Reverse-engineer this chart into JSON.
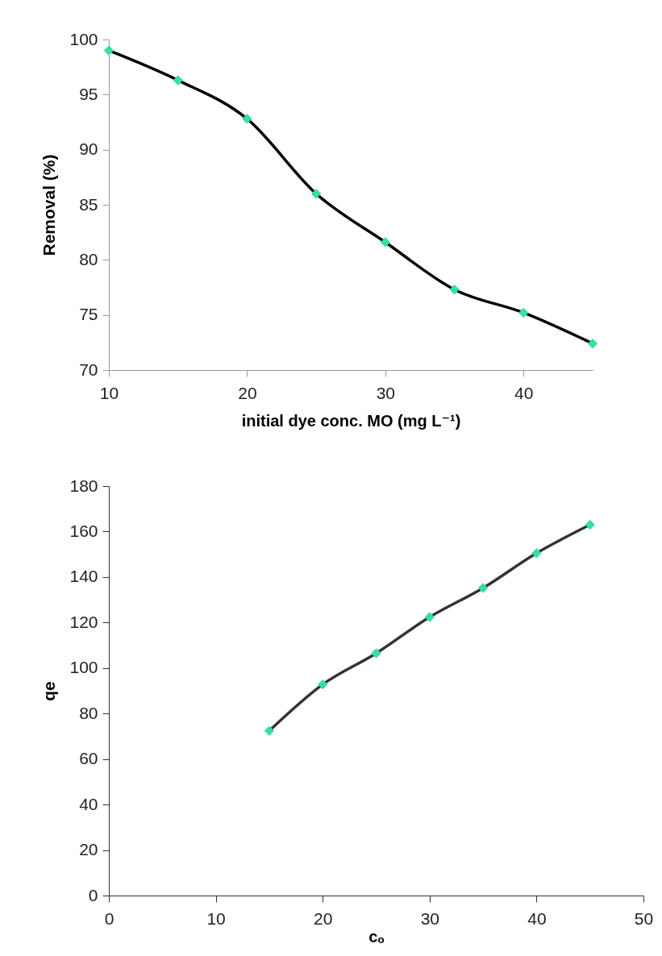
{
  "chart_data": [
    {
      "type": "line",
      "xlabel": "initial dye conc. MO (mg L⁻¹)",
      "ylabel": "Removal (%)",
      "x": [
        10,
        15,
        20,
        25,
        30,
        35,
        40,
        45
      ],
      "xlim": [
        10,
        45
      ],
      "xticks": [
        10,
        20,
        30,
        40
      ],
      "ylim": [
        70,
        100
      ],
      "yticks": [
        70,
        75,
        80,
        85,
        90,
        95,
        100
      ],
      "marker": "diamond",
      "line_style": "solid",
      "grid": false,
      "legend": false,
      "series": [
        {
          "color": "#000000",
          "values": [
            99,
            96.3,
            92.8,
            86,
            81.6,
            77.3,
            75.2,
            72.4
          ]
        }
      ]
    },
    {
      "type": "line",
      "xlabel": "cₒ",
      "ylabel": "qe",
      "x": [
        15,
        20,
        25,
        30,
        35,
        40,
        45
      ],
      "xlim": [
        0,
        50
      ],
      "xticks": [
        0,
        10,
        20,
        30,
        40,
        50
      ],
      "ylim": [
        0,
        180
      ],
      "yticks": [
        0,
        20,
        40,
        60,
        80,
        100,
        120,
        140,
        160,
        180
      ],
      "marker": "diamond",
      "line_style": "solid",
      "grid": false,
      "legend": false,
      "series": [
        {
          "color": "#333333",
          "values": [
            72.4,
            92.8,
            106.5,
            122.4,
            135.2,
            150.5,
            163
          ]
        }
      ]
    }
  ]
}
